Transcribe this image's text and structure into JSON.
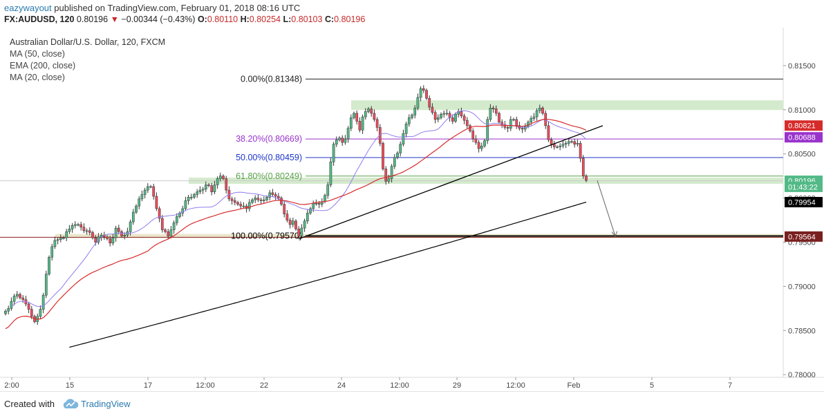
{
  "header": {
    "user": "eazywayout",
    "published_text": "published on TradingView.com, February 01, 2018 08:16 UTC",
    "symbol": "FX:AUDUSD, 120",
    "last": "0.80196",
    "change": "−0.00344 (−0.43%)",
    "o_label": "O:",
    "o": "0.80110",
    "h_label": "H:",
    "h": "0.80254",
    "l_label": "L:",
    "l": "0.80103",
    "c_label": "C:",
    "c": "0.80196"
  },
  "footer": {
    "created_with": "Created with",
    "brand": "TradingView"
  },
  "colors": {
    "up": "#53b987",
    "down": "#eb4d5c",
    "ma50": "#d62b2b",
    "ema200": "#000000",
    "ma20": "#8f7cf0",
    "fib0": "#222222",
    "fib382": "#9933cc",
    "fib50": "#1d35c9",
    "fib618": "#5aa04a",
    "zone": "#cfe8c8"
  },
  "chart_data": {
    "type": "candlestick",
    "title": "Australian Dollar/U.S. Dollar, 120, FXCM",
    "indicators": [
      "MA (50, close)",
      "EMA (200, close)",
      "MA (20, close)"
    ],
    "ylim": [
      0.7797,
      0.8193
    ],
    "y_ticks": [
      "0.81500",
      "0.81000",
      "0.80500",
      "0.80000",
      "0.79500",
      "0.79000",
      "0.78500",
      "0.78000"
    ],
    "x_ticks": [
      "2:00",
      "15",
      "17",
      "12:00",
      "22",
      "24",
      "12:00",
      "29",
      "12:00",
      "Feb",
      "5",
      "7"
    ],
    "price_labels": [
      {
        "text": "0.80821",
        "value": 0.80821,
        "color": "#d62b2b"
      },
      {
        "text": "0.80688",
        "value": 0.80688,
        "color": "#9933cc"
      },
      {
        "text": "0.80196",
        "value": 0.80196,
        "color": "#53b987"
      },
      {
        "text": "01:43:22",
        "value": 0.80127,
        "color": "#53b987"
      },
      {
        "text": "0.79954",
        "value": 0.79954,
        "color": "#000000"
      },
      {
        "text": "0.79564",
        "value": 0.79564,
        "color": "#7a1f1f"
      }
    ],
    "fib_levels": [
      {
        "label": "0.00%(0.81348)",
        "value": 0.81348
      },
      {
        "label": "38.20%(0.80669)",
        "value": 0.80669
      },
      {
        "label": "50.00%(0.80459)",
        "value": 0.80459
      },
      {
        "label": "61.80%(0.80249)",
        "value": 0.80249
      },
      {
        "label": "100.00%(0.79570)",
        "value": 0.7957
      }
    ],
    "support_resistance_zones": [
      0.81052,
      0.80196,
      0.7957
    ],
    "close_series": [
      0.7872,
      0.7875,
      0.7883,
      0.7889,
      0.7891,
      0.7887,
      0.7885,
      0.788,
      0.7874,
      0.7866,
      0.786,
      0.7866,
      0.7874,
      0.789,
      0.7914,
      0.7933,
      0.7945,
      0.7952,
      0.7953,
      0.7955,
      0.7955,
      0.7962,
      0.7965,
      0.7969,
      0.797,
      0.797,
      0.7967,
      0.7963,
      0.7963,
      0.7961,
      0.7955,
      0.795,
      0.7956,
      0.7958,
      0.7956,
      0.7954,
      0.7949,
      0.7955,
      0.7966,
      0.7962,
      0.7957,
      0.7958,
      0.7962,
      0.7973,
      0.7984,
      0.7991,
      0.7999,
      0.8004,
      0.8009,
      0.8013,
      0.8013,
      0.8002,
      0.7988,
      0.7977,
      0.7964,
      0.7962,
      0.7957,
      0.7964,
      0.7972,
      0.7979,
      0.7983,
      0.7988,
      0.7997,
      0.8001,
      0.8001,
      0.8004,
      0.8007,
      0.8009,
      0.801,
      0.8015,
      0.8014,
      0.8007,
      0.8015,
      0.8022,
      0.8025,
      0.8022,
      0.8009,
      0.7999,
      0.7997,
      0.7995,
      0.7993,
      0.7991,
      0.7991,
      0.7988,
      0.7995,
      0.7998,
      0.8,
      0.7998,
      0.7997,
      0.7998,
      0.8001,
      0.8006,
      0.8004,
      0.8002,
      0.8,
      0.7993,
      0.7982,
      0.7975,
      0.797,
      0.7974,
      0.7965,
      0.7957,
      0.7966,
      0.7974,
      0.7983,
      0.7988,
      0.7994,
      0.7994,
      0.7993,
      0.7996,
      0.8003,
      0.8015,
      0.8041,
      0.8061,
      0.8066,
      0.8068,
      0.8063,
      0.8067,
      0.8079,
      0.8091,
      0.8096,
      0.8087,
      0.8077,
      0.8092,
      0.8098,
      0.8101,
      0.8096,
      0.8089,
      0.808,
      0.8062,
      0.8033,
      0.8019,
      0.8022,
      0.8036,
      0.8046,
      0.8051,
      0.8061,
      0.8073,
      0.8084,
      0.8091,
      0.8094,
      0.8102,
      0.8114,
      0.8124,
      0.8122,
      0.8113,
      0.8103,
      0.8097,
      0.8089,
      0.8091,
      0.8095,
      0.8096,
      0.8096,
      0.8091,
      0.8087,
      0.8095,
      0.8098,
      0.8093,
      0.8088,
      0.8082,
      0.8076,
      0.8067,
      0.8063,
      0.8056,
      0.8059,
      0.8065,
      0.8089,
      0.8102,
      0.8101,
      0.8096,
      0.8086,
      0.8083,
      0.808,
      0.8079,
      0.8089,
      0.8089,
      0.8082,
      0.8079,
      0.8078,
      0.8081,
      0.8086,
      0.809,
      0.8092,
      0.8099,
      0.8102,
      0.8096,
      0.8082,
      0.8066,
      0.8061,
      0.8058,
      0.8058,
      0.8059,
      0.8061,
      0.8062,
      0.8064,
      0.8064,
      0.8061,
      0.8062,
      0.8045,
      0.8025,
      0.802
    ],
    "annotations": {
      "uptrend_line": {
        "from": [
          0,
          0.7955
        ],
        "to": [
          176,
          0.8082
        ]
      },
      "projection_arrow": {
        "from_value": 0.802,
        "to_value": 0.7957
      }
    }
  }
}
